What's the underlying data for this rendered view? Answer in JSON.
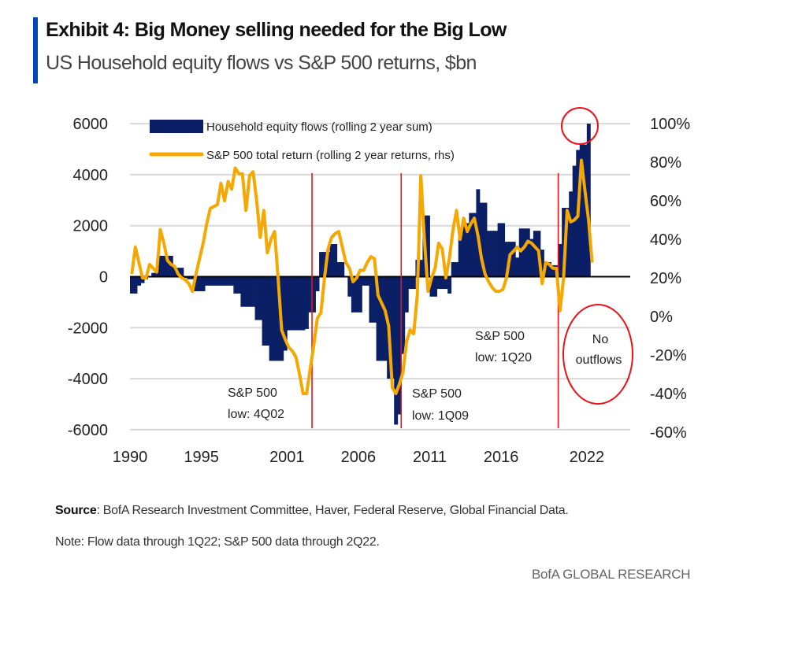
{
  "header": {
    "title": "Exhibit 4: Big Money selling needed for the Big Low",
    "subtitle": "US Household equity flows vs S&P 500 returns, $bn"
  },
  "colors": {
    "accent": "#0047bb",
    "flows": "#0b1f66",
    "sp500": "#f5a800",
    "annotation": "#e8141a",
    "grid": "#d9d9d9"
  },
  "chart_data": {
    "type": "bar+line",
    "frequency": "quarterly",
    "legend_placement": "top-left",
    "grid": true,
    "left_axis": {
      "ylim": [
        -6000,
        6000
      ],
      "ticks": [
        "6000",
        "4000",
        "2000",
        "0",
        "-2000",
        "-4000",
        "-6000"
      ],
      "tick_values": [
        6000,
        4000,
        2000,
        0,
        -2000,
        -4000,
        -6000
      ]
    },
    "right_axis": {
      "ylim": [
        -60,
        100
      ],
      "ticks": [
        "100%",
        "80%",
        "60%",
        "40%",
        "20%",
        "0%",
        "-20%",
        "-40%",
        "-60%"
      ],
      "tick_values": [
        100,
        80,
        60,
        40,
        20,
        0,
        -20,
        -40,
        -60
      ]
    },
    "x_ticks": [
      "1990",
      "1995",
      "2001",
      "2006",
      "2011",
      "2016",
      "2022"
    ],
    "series": [
      {
        "name": "Household equity flows (rolling 2 year sum)",
        "type": "bar",
        "axis": "left",
        "unit": "$bn",
        "values_by_year": {
          "1990": [
            -660,
            -660,
            -350,
            -250
          ],
          "1991": [
            -100,
            0,
            150,
            300
          ],
          "1992": [
            820,
            820,
            820,
            820
          ],
          "1993": [
            350,
            350,
            350,
            -50
          ],
          "1994": [
            -100,
            -100,
            -570,
            -570
          ],
          "1995": [
            -570,
            -350,
            -350,
            -350
          ],
          "1996": [
            -350,
            -350,
            -350,
            -350
          ],
          "1997": [
            -350,
            -660,
            -660,
            -1180
          ],
          "1998": [
            -1180,
            -1180,
            -1180,
            -1700
          ],
          "1999": [
            -1700,
            -2700,
            -2700,
            -3300
          ],
          "2000": [
            -3300,
            -3300,
            -3300,
            -2900
          ],
          "2001": [
            -2100,
            -2100,
            -2100,
            -2100
          ],
          "2002": [
            -2100,
            -2050,
            -1400,
            -1400
          ],
          "2003": [
            -570,
            970,
            970,
            970
          ],
          "2004": [
            1280,
            1280,
            570,
            570
          ],
          "2005": [
            0,
            -780,
            -1400,
            -1400
          ],
          "2006": [
            -1400,
            -350,
            -350,
            -1800
          ],
          "2007": [
            -1800,
            -3300,
            -3300,
            -3300
          ],
          "2008": [
            -4000,
            -4000,
            -5800,
            -5400
          ],
          "2009": [
            -3030,
            -1400,
            -480,
            -480
          ],
          "2010": [
            660,
            660,
            2400,
            2400
          ],
          "2011": [
            -780,
            -780,
            -480,
            -480
          ],
          "2012": [
            -480,
            -660,
            570,
            570
          ],
          "2013": [
            1680,
            2100,
            2100,
            2500
          ],
          "2014": [
            2500,
            3430,
            2900,
            2900
          ],
          "2015": [
            1800,
            1800,
            1800,
            2100
          ],
          "2016": [
            2100,
            1370,
            1370,
            1370
          ],
          "2017": [
            750,
            1890,
            1890,
            1890
          ],
          "2018": [
            1480,
            1800,
            1800,
            1060
          ],
          "2019": [
            570,
            570,
            450,
            450
          ],
          "2020": [
            1280,
            2700,
            2700,
            3340
          ],
          "2021": [
            4350,
            4970,
            5180,
            5180
          ],
          "2022": [
            6000
          ]
        }
      },
      {
        "name": "S&P 500 total return (rolling 2 year returns, rhs)",
        "type": "line",
        "axis": "right",
        "unit": "%",
        "values_by_year": {
          "1990": [
            22,
            36,
            28,
            20
          ],
          "1991": [
            20,
            27,
            25,
            23
          ],
          "1992": [
            45,
            38,
            29,
            27
          ],
          "1993": [
            26,
            22,
            20,
            19
          ],
          "1994": [
            17,
            13,
            22,
            30
          ],
          "1995": [
            38,
            48,
            56,
            57
          ],
          "1996": [
            58,
            69,
            60,
            70
          ],
          "1997": [
            66,
            77,
            74,
            74
          ],
          "1998": [
            55,
            73,
            75,
            60
          ],
          "1999": [
            41,
            55,
            33,
            40
          ],
          "2000": [
            44,
            20,
            -7,
            -12
          ],
          "2001": [
            -16,
            -18,
            -21,
            -30
          ],
          "2002": [
            -40,
            -40,
            -27,
            -15
          ],
          "2003": [
            -1,
            2,
            20,
            35
          ],
          "2004": [
            41,
            43,
            44,
            36
          ],
          "2005": [
            28,
            25,
            18,
            20
          ],
          "2006": [
            24,
            24,
            28,
            31
          ],
          "2007": [
            30,
            11,
            7,
            3
          ],
          "2008": [
            -5,
            -37,
            -40,
            -35
          ],
          "2009": [
            -29,
            -13,
            -7,
            -9
          ],
          "2010": [
            11,
            73,
            40,
            13
          ],
          "2011": [
            20,
            25,
            38,
            35
          ],
          "2012": [
            20,
            30,
            45,
            55
          ],
          "2013": [
            40,
            51,
            44,
            48
          ],
          "2014": [
            51,
            42,
            30,
            22
          ],
          "2015": [
            18,
            15,
            13,
            13
          ],
          "2016": [
            14,
            20,
            32,
            34
          ],
          "2017": [
            36,
            34,
            36,
            39
          ],
          "2018": [
            38,
            36,
            34,
            17
          ],
          "2019": [
            28,
            27,
            25,
            25
          ],
          "2020": [
            3,
            20,
            55,
            49
          ],
          "2021": [
            50,
            52,
            81,
            65
          ],
          "2022": [
            50,
            28
          ]
        }
      }
    ],
    "markers": [
      {
        "quarter": "2002Q4",
        "label_line1": "S&P 500",
        "label_line2": "low: 4Q02"
      },
      {
        "quarter": "2009Q1",
        "label_line1": "S&P 500",
        "label_line2": "low: 1Q09"
      },
      {
        "quarter": "2020Q1",
        "label_line1": "S&P 500",
        "label_line2": "low: 1Q20"
      }
    ],
    "annotations": {
      "peak_circle": "2022Q1",
      "no_outflows_line1": "No",
      "no_outflows_line2": "outflows"
    }
  },
  "footer": {
    "source_label": "Source",
    "source_text": ": BofA Research Investment Committee, Haver, Federal Reserve, Global Financial Data.",
    "note": "Note: Flow data through 1Q22; S&P 500 data through 2Q22.",
    "brand": "BofA GLOBAL RESEARCH"
  }
}
